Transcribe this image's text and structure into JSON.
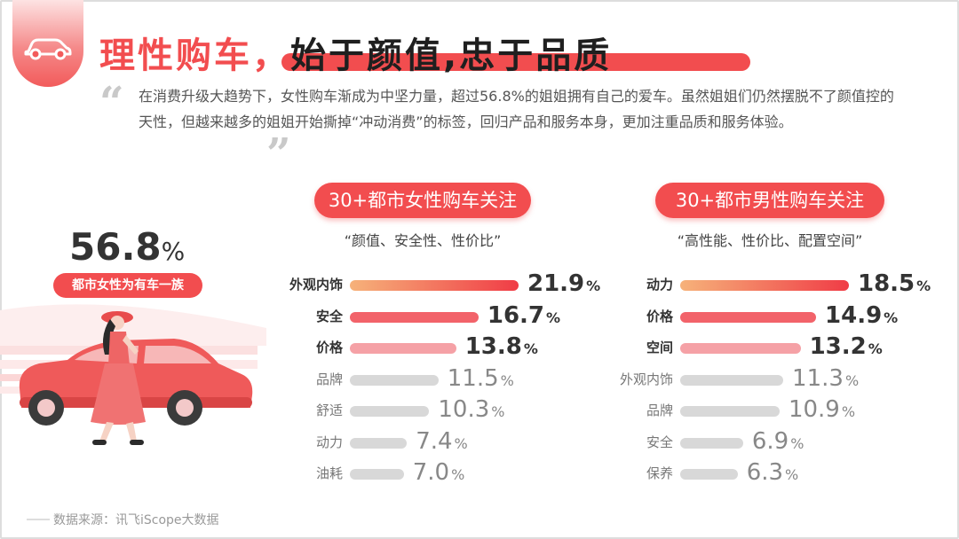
{
  "title": {
    "part1": "理性购车，",
    "part2": "始于颜值,忠于品质"
  },
  "intro": {
    "open_quote": "“",
    "close_quote": "”",
    "text": "在消费升级大趋势下，女性购车渐成为中坚力量，超过56.8%的姐姐拥有自己的爱车。虽然姐姐们仍然摆脱不了颜值控的天性，但越来越多的姐姐开始撕掉“冲动消费”的标签，回归产品和服务本身，更加注重品质和服务体验。"
  },
  "highlight": {
    "value": "56.8",
    "unit": "%",
    "badge": "都市女性为有车一族"
  },
  "icons": [
    "car-icon"
  ],
  "colors": {
    "accent": "#f24d4f",
    "top_gradient_start": "#f6b27a",
    "top_gradient_end": "#f03c46",
    "bar_second": "#f2636a",
    "bar_third": "#f5a1a6",
    "bar_rest": "#d8d8d8"
  },
  "chart_data": [
    {
      "type": "bar",
      "title": "30+都市女性购车关注",
      "subtitle": "“颜值、安全性、性价比”",
      "unit": "%",
      "categories": [
        "外观内饰",
        "安全",
        "价格",
        "品牌",
        "舒适",
        "动力",
        "油耗"
      ],
      "values": [
        21.9,
        16.7,
        13.8,
        11.5,
        10.3,
        7.4,
        7.0
      ],
      "value_labels": [
        "21.9",
        "16.7",
        "13.8",
        "11.5",
        "10.3",
        "7.4",
        "7.0"
      ],
      "xlim": [
        0,
        21.9
      ]
    },
    {
      "type": "bar",
      "title": "30+都市男性购车关注",
      "subtitle": "“高性能、性价比、配置空间”",
      "unit": "%",
      "categories": [
        "动力",
        "价格",
        "空间",
        "外观内饰",
        "品牌",
        "安全",
        "保养"
      ],
      "values": [
        18.5,
        14.9,
        13.2,
        11.3,
        10.9,
        6.9,
        6.3
      ],
      "value_labels": [
        "18.5",
        "14.9",
        "13.2",
        "11.3",
        "10.9",
        "6.9",
        "6.3"
      ],
      "xlim": [
        0,
        18.5
      ]
    }
  ],
  "source": "数据来源：讯飞iScope大数据"
}
